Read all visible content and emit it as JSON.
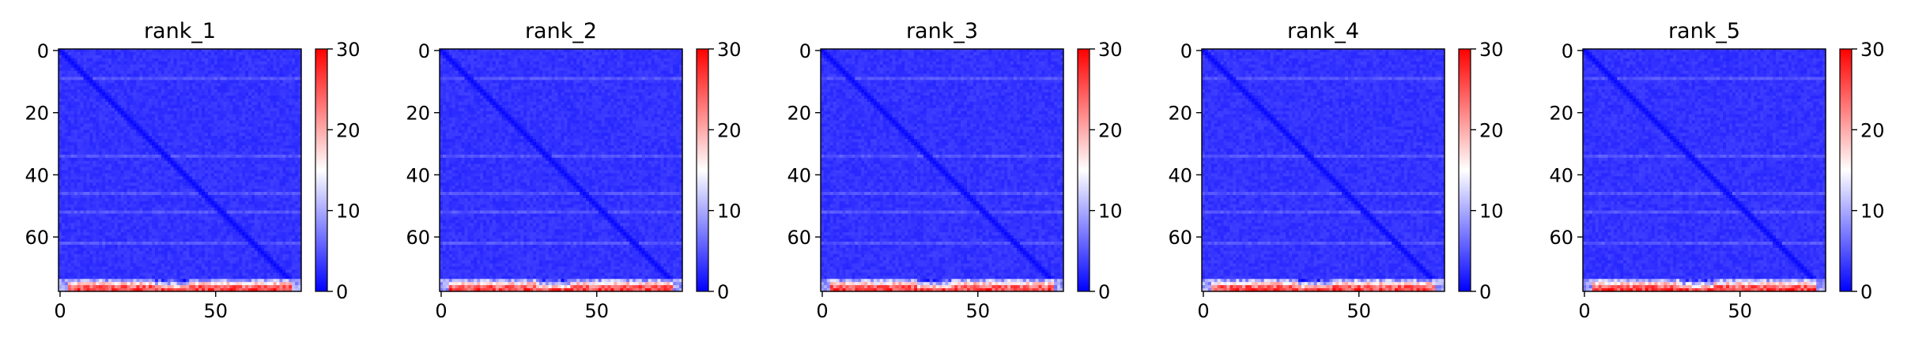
{
  "chart_data": [
    {
      "type": "heatmap",
      "title": "rank_1",
      "xticks": [
        0,
        50
      ],
      "yticks": [
        0,
        20,
        40,
        60
      ],
      "xlim": [
        -0.5,
        77.5
      ],
      "ylim": [
        77.5,
        -0.5
      ],
      "n": 78,
      "colorbar": {
        "ticks": [
          0,
          10,
          20,
          30
        ],
        "range": [
          0,
          30
        ],
        "colormap": "bwr"
      },
      "description_values": {
        "background": 3,
        "diagonal": 0.5,
        "stripe_rows": [
          9,
          34,
          46,
          52,
          62
        ],
        "stripe_value": 5,
        "bottom_rows_from": 74,
        "bottom_value": 27
      }
    },
    {
      "type": "heatmap",
      "title": "rank_2",
      "xticks": [
        0,
        50
      ],
      "yticks": [
        0,
        20,
        40,
        60
      ],
      "xlim": [
        -0.5,
        77.5
      ],
      "ylim": [
        77.5,
        -0.5
      ],
      "n": 78,
      "colorbar": {
        "ticks": [
          0,
          10,
          20,
          30
        ],
        "range": [
          0,
          30
        ],
        "colormap": "bwr"
      },
      "description_values": {
        "background": 3,
        "diagonal": 0.5,
        "stripe_rows": [
          9,
          34,
          46,
          52,
          62
        ],
        "stripe_value": 5,
        "bottom_rows_from": 74,
        "bottom_value": 27
      }
    },
    {
      "type": "heatmap",
      "title": "rank_3",
      "xticks": [
        0,
        50
      ],
      "yticks": [
        0,
        20,
        40,
        60
      ],
      "xlim": [
        -0.5,
        77.5
      ],
      "ylim": [
        77.5,
        -0.5
      ],
      "n": 78,
      "colorbar": {
        "ticks": [
          0,
          10,
          20,
          30
        ],
        "range": [
          0,
          30
        ],
        "colormap": "bwr"
      },
      "description_values": {
        "background": 3,
        "diagonal": 0.5,
        "stripe_rows": [
          9,
          34,
          46,
          52,
          62
        ],
        "stripe_value": 5,
        "bottom_rows_from": 74,
        "bottom_value": 27
      }
    },
    {
      "type": "heatmap",
      "title": "rank_4",
      "xticks": [
        0,
        50
      ],
      "yticks": [
        0,
        20,
        40,
        60
      ],
      "xlim": [
        -0.5,
        77.5
      ],
      "ylim": [
        77.5,
        -0.5
      ],
      "n": 78,
      "colorbar": {
        "ticks": [
          0,
          10,
          20,
          30
        ],
        "range": [
          0,
          30
        ],
        "colormap": "bwr"
      },
      "description_values": {
        "background": 3,
        "diagonal": 0.5,
        "stripe_rows": [
          9,
          34,
          46,
          52,
          62
        ],
        "stripe_value": 5,
        "bottom_rows_from": 74,
        "bottom_value": 27
      }
    },
    {
      "type": "heatmap",
      "title": "rank_5",
      "xticks": [
        0,
        50
      ],
      "yticks": [
        0,
        20,
        40,
        60
      ],
      "xlim": [
        -0.5,
        77.5
      ],
      "ylim": [
        77.5,
        -0.5
      ],
      "n": 78,
      "colorbar": {
        "ticks": [
          0,
          10,
          20,
          30
        ],
        "range": [
          0,
          30
        ],
        "colormap": "bwr"
      },
      "description_values": {
        "background": 3,
        "diagonal": 0.5,
        "stripe_rows": [
          9,
          34,
          46,
          52,
          62
        ],
        "stripe_value": 5,
        "bottom_rows_from": 74,
        "bottom_value": 27
      }
    }
  ]
}
